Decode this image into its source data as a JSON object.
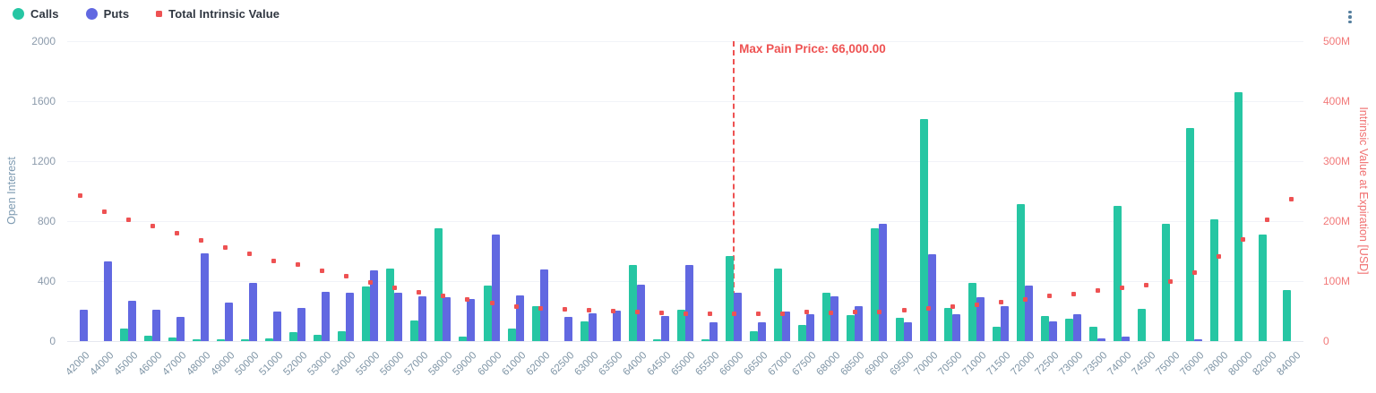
{
  "legend": {
    "items": [
      {
        "label": "Calls",
        "color": "#26c6a3",
        "shape": "circle"
      },
      {
        "label": "Puts",
        "color": "#6168e1",
        "shape": "circle"
      },
      {
        "label": "Total Intrinsic Value",
        "color": "#ee5253",
        "shape": "square"
      }
    ]
  },
  "menu": {
    "icon": "kebab-menu-icon"
  },
  "annotation": {
    "max_pain_label": "Max Pain Price: 66,000.00",
    "max_pain_category": "66000"
  },
  "left_axis": {
    "title": "Open Interest",
    "ticks": [
      "2000",
      "1600",
      "1200",
      "800",
      "400",
      "0"
    ],
    "min": 0,
    "max": 2000
  },
  "right_axis": {
    "title": "Intrinsic Value at Expiration [USD]",
    "ticks": [
      "500M",
      "400M",
      "300M",
      "200M",
      "100M",
      "0"
    ],
    "min": 0,
    "max_millions": 500
  },
  "colors": {
    "calls": "#26c6a3",
    "puts": "#6168e1",
    "intrinsic": "#ee5253",
    "max_pain": "#ee5252",
    "left_axis_text": "#8b9aab",
    "right_axis_text": "#f27979",
    "x_label_text": "#7f95a6"
  },
  "chart_data": {
    "type": "bar",
    "title": "",
    "xlabel": "",
    "ylabel_left": "Open Interest",
    "ylabel_right": "Intrinsic Value at Expiration [USD]",
    "ylim_left": [
      0,
      2000
    ],
    "ylim_right_millions": [
      0,
      500
    ],
    "grid": true,
    "legend_position": "top-left",
    "categories": [
      "42000",
      "44000",
      "45000",
      "46000",
      "47000",
      "48000",
      "49000",
      "50000",
      "51000",
      "52000",
      "53000",
      "54000",
      "55000",
      "56000",
      "57000",
      "58000",
      "59000",
      "60000",
      "61000",
      "62000",
      "62500",
      "63000",
      "63500",
      "64000",
      "64500",
      "65000",
      "65500",
      "66000",
      "66500",
      "67000",
      "67500",
      "68000",
      "68500",
      "69000",
      "69500",
      "70000",
      "70500",
      "71000",
      "71500",
      "72000",
      "72500",
      "73000",
      "73500",
      "74000",
      "74500",
      "75000",
      "76000",
      "78000",
      "80000",
      "82000",
      "84000"
    ],
    "series": [
      {
        "name": "Calls",
        "type": "bar",
        "axis": "left",
        "color": "#26c6a3",
        "values": [
          0,
          0,
          85,
          35,
          25,
          15,
          15,
          10,
          20,
          60,
          40,
          65,
          365,
          485,
          135,
          750,
          30,
          370,
          85,
          230,
          0,
          130,
          0,
          510,
          10,
          210,
          15,
          565,
          65,
          485,
          105,
          320,
          175,
          755,
          155,
          1480,
          220,
          390,
          95,
          915,
          170,
          150,
          95,
          900,
          215,
          785,
          1420,
          815,
          1660,
          710,
          340
        ]
      },
      {
        "name": "Puts",
        "type": "bar",
        "axis": "left",
        "color": "#6168e1",
        "values": [
          210,
          530,
          270,
          210,
          160,
          585,
          255,
          390,
          195,
          220,
          330,
          325,
          470,
          325,
          300,
          295,
          280,
          710,
          305,
          475,
          160,
          185,
          205,
          375,
          165,
          510,
          125,
          325,
          125,
          195,
          180,
          300,
          230,
          785,
          125,
          580,
          180,
          295,
          230,
          370,
          130,
          180,
          20,
          30,
          0,
          0,
          15,
          0,
          0,
          0,
          0
        ]
      },
      {
        "name": "Total Intrinsic Value",
        "type": "scatter",
        "axis": "right",
        "color": "#ee5253",
        "values_millions": [
          242,
          216,
          203,
          192,
          180,
          168,
          156,
          146,
          134,
          127,
          117,
          108,
          98,
          89,
          82,
          75,
          69,
          63,
          58,
          55,
          53,
          51,
          50,
          48,
          47,
          46,
          46,
          45,
          46,
          45,
          48,
          47,
          49,
          49,
          52,
          54,
          58,
          61,
          65,
          69,
          75,
          79,
          84,
          89,
          94,
          100,
          114,
          141,
          170,
          203,
          237
        ]
      }
    ]
  }
}
